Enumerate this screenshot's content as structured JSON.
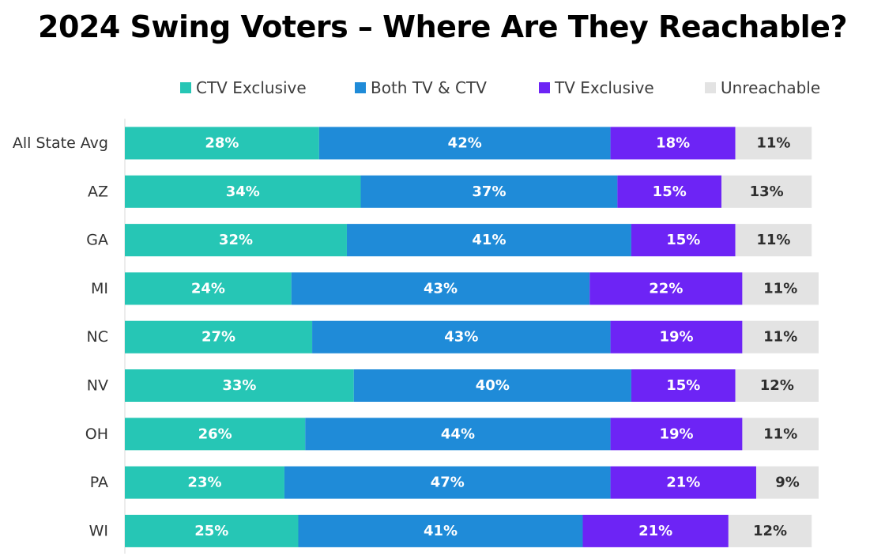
{
  "chart_data": {
    "type": "bar",
    "orientation": "horizontal",
    "stacked": true,
    "title": "2024 Swing Voters – Where Are They Reachable?",
    "xlabel": "",
    "ylabel": "",
    "xlim": [
      0,
      100
    ],
    "grid": false,
    "legend_position": "top",
    "categories": [
      "All State Avg",
      "AZ",
      "GA",
      "MI",
      "NC",
      "NV",
      "OH",
      "PA",
      "WI"
    ],
    "series": [
      {
        "name": "CTV Exclusive",
        "color": "#26c6b5",
        "label_color": "#ffffff",
        "values": [
          28,
          34,
          32,
          24,
          27,
          33,
          26,
          23,
          25
        ]
      },
      {
        "name": "Both TV & CTV",
        "color": "#1f8bd8",
        "label_color": "#ffffff",
        "values": [
          42,
          37,
          41,
          43,
          43,
          40,
          44,
          47,
          41
        ]
      },
      {
        "name": "TV Exclusive",
        "color": "#6d24f5",
        "label_color": "#ffffff",
        "values": [
          18,
          15,
          15,
          22,
          19,
          15,
          19,
          21,
          21
        ]
      },
      {
        "name": "Unreachable",
        "color": "#e3e3e3",
        "label_color": "#2e2e2e",
        "values": [
          11,
          13,
          11,
          11,
          11,
          12,
          11,
          9,
          12
        ]
      }
    ],
    "value_suffix": "%"
  }
}
